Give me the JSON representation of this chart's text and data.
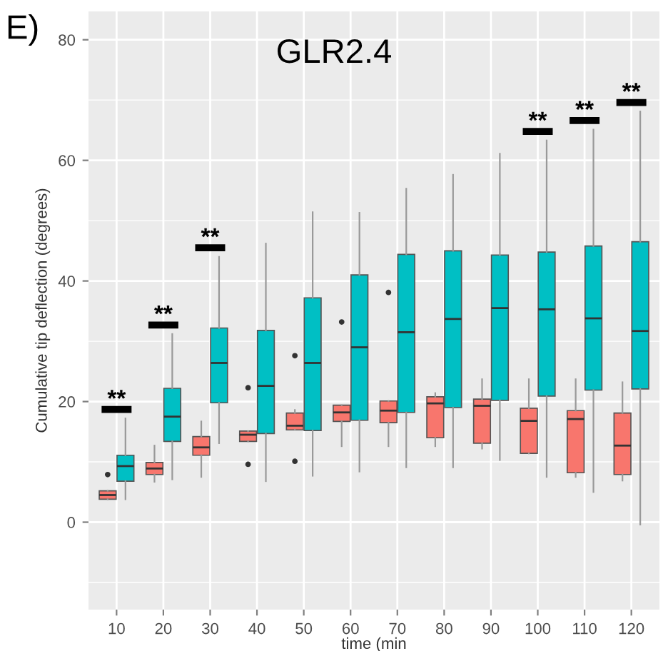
{
  "chart_data": {
    "type": "box",
    "title": "GLR2.4",
    "xlabel": "time (min",
    "ylabel": "Cumulative tip deflection (degrees)",
    "categories": [
      "10",
      "20",
      "30",
      "40",
      "50",
      "60",
      "70",
      "80",
      "90",
      "100",
      "110",
      "120"
    ],
    "series": [
      {
        "color": "#f8766d",
        "boxes": [
          {
            "low": 3.8,
            "q1": 3.8,
            "median": 4.5,
            "q3": 5.2,
            "high": 5.2,
            "outliers": [
              7.9
            ]
          },
          {
            "low": 6.7,
            "q1": 7.9,
            "median": 8.9,
            "q3": 9.9,
            "high": 12.7
          },
          {
            "low": 7.5,
            "q1": 11.1,
            "median": 12.4,
            "q3": 14.2,
            "high": 16.7
          },
          {
            "low": 13.4,
            "q1": 13.4,
            "median": 14.5,
            "q3": 15.1,
            "high": 15.1,
            "outliers": [
              22.3,
              9.6
            ]
          },
          {
            "low": 15.3,
            "q1": 15.3,
            "median": 16.0,
            "q3": 18.1,
            "high": 18.6,
            "outliers": [
              27.6,
              10.1
            ]
          },
          {
            "low": 12.6,
            "q1": 16.7,
            "median": 18.2,
            "q3": 19.4,
            "high": 19.4,
            "outliers": [
              33.2
            ]
          },
          {
            "low": 12.6,
            "q1": 16.5,
            "median": 18.5,
            "q3": 20.1,
            "high": 20.1,
            "outliers": [
              38.1
            ]
          },
          {
            "low": 12.6,
            "q1": 14.0,
            "median": 19.7,
            "q3": 20.8,
            "high": 21.4
          },
          {
            "low": 12.2,
            "q1": 13.1,
            "median": 19.3,
            "q3": 20.4,
            "high": 23.7
          },
          {
            "low": 11.4,
            "q1": 11.4,
            "median": 16.8,
            "q3": 18.9,
            "high": 23.7
          },
          {
            "low": 7.5,
            "q1": 8.2,
            "median": 17.1,
            "q3": 18.5,
            "high": 23.7
          },
          {
            "low": 6.9,
            "q1": 7.9,
            "median": 12.7,
            "q3": 18.1,
            "high": 23.2
          }
        ]
      },
      {
        "color": "#00bfc4",
        "boxes": [
          {
            "low": 3.8,
            "q1": 6.8,
            "median": 9.3,
            "q3": 11.1,
            "high": 17.2
          },
          {
            "low": 7.1,
            "q1": 13.4,
            "median": 17.5,
            "q3": 22.2,
            "high": 31.2
          },
          {
            "low": 13.1,
            "q1": 19.8,
            "median": 26.4,
            "q3": 32.2,
            "high": 44.0
          },
          {
            "low": 6.8,
            "q1": 14.7,
            "median": 22.6,
            "q3": 31.8,
            "high": 46.2
          },
          {
            "low": 7.7,
            "q1": 15.2,
            "median": 26.4,
            "q3": 37.2,
            "high": 51.4
          },
          {
            "low": 8.4,
            "q1": 16.9,
            "median": 29.0,
            "q3": 41.0,
            "high": 51.3
          },
          {
            "low": 9.1,
            "q1": 18.2,
            "median": 31.5,
            "q3": 44.4,
            "high": 55.3
          },
          {
            "low": 9.1,
            "q1": 19.0,
            "median": 33.7,
            "q3": 45.0,
            "high": 57.6
          },
          {
            "low": 10.3,
            "q1": 20.2,
            "median": 35.5,
            "q3": 44.3,
            "high": 61.1
          },
          {
            "low": 7.5,
            "q1": 20.9,
            "median": 35.3,
            "q3": 44.8,
            "high": 63.3
          },
          {
            "low": 5.0,
            "q1": 21.9,
            "median": 33.8,
            "q3": 45.8,
            "high": 65.1
          },
          {
            "low": -0.4,
            "q1": 22.1,
            "median": 31.7,
            "q3": 46.5,
            "high": 68.1
          }
        ]
      }
    ],
    "ylim": [
      -14.5,
      84.7
    ],
    "yticks": [
      0,
      20,
      40,
      60,
      80
    ],
    "grid": true,
    "annotations": [
      "E)",
      "**",
      "**",
      "**",
      "**",
      "**",
      "**"
    ]
  }
}
